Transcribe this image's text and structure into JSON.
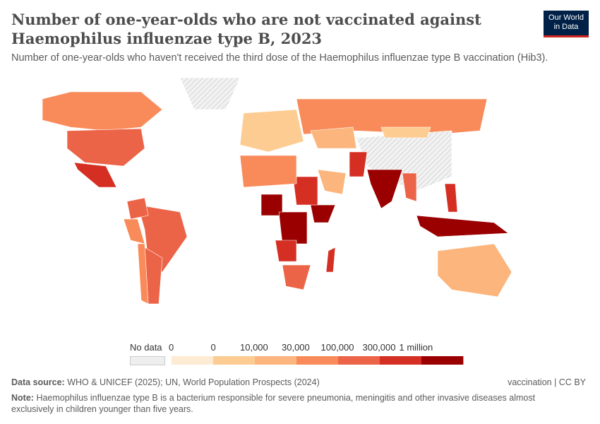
{
  "title": "Number of one-year-olds who are not vaccinated against Haemophilus influenzae type B, 2023",
  "subtitle": "Number of one-year-olds who haven't received the third dose of the Haemophilus influenzae type B vaccination (Hib3).",
  "logo": {
    "line1": "Our World",
    "line2": "in Data"
  },
  "chart_data": {
    "type": "choropleth",
    "legend": {
      "no_data_label": "No data",
      "ticks": [
        "0",
        "0",
        "10,000",
        "30,000",
        "100,000",
        "300,000",
        "1 million"
      ],
      "colors": [
        "#feebd3",
        "#fdcc92",
        "#fcb57c",
        "#f98b5a",
        "#ec6448",
        "#d52e22",
        "#9b0000"
      ],
      "no_data_color": "#e0e0e0"
    },
    "regions": [
      {
        "name": "Canada",
        "bin": 3
      },
      {
        "name": "United States",
        "bin": 4
      },
      {
        "name": "Mexico",
        "bin": 5
      },
      {
        "name": "Brazil",
        "bin": 4
      },
      {
        "name": "Argentina",
        "bin": 4
      },
      {
        "name": "Peru",
        "bin": 3
      },
      {
        "name": "Colombia",
        "bin": 4
      },
      {
        "name": "Russia",
        "bin": 3
      },
      {
        "name": "China",
        "bin": -1
      },
      {
        "name": "Greenland",
        "bin": -1
      },
      {
        "name": "Kazakhstan",
        "bin": 2
      },
      {
        "name": "Mongolia",
        "bin": 1
      },
      {
        "name": "India",
        "bin": 6
      },
      {
        "name": "Pakistan",
        "bin": 5
      },
      {
        "name": "Indonesia",
        "bin": 6
      },
      {
        "name": "Nigeria",
        "bin": 6
      },
      {
        "name": "DR Congo",
        "bin": 6
      },
      {
        "name": "Ethiopia",
        "bin": 6
      },
      {
        "name": "Sudan",
        "bin": 5
      },
      {
        "name": "Angola",
        "bin": 5
      },
      {
        "name": "Madagascar",
        "bin": 5
      },
      {
        "name": "South Africa",
        "bin": 4
      },
      {
        "name": "Australia",
        "bin": 2
      },
      {
        "name": "Saudi Arabia",
        "bin": 2
      },
      {
        "name": "Algeria",
        "bin": 3
      },
      {
        "name": "Europe",
        "bin": 1
      },
      {
        "name": "Philippines",
        "bin": 5
      },
      {
        "name": "Myanmar",
        "bin": 4
      },
      {
        "name": "Chile",
        "bin": 3
      }
    ]
  },
  "footer": {
    "source_label": "Data source:",
    "source": "WHO & UNICEF (2025); UN, World Population Prospects (2024)",
    "right": "vaccination | CC BY",
    "note_label": "Note:",
    "note": "Haemophilus influenzae type B is a bacterium responsible for severe pneumonia, meningitis and other invasive diseases almost exclusively in children younger than five years."
  }
}
